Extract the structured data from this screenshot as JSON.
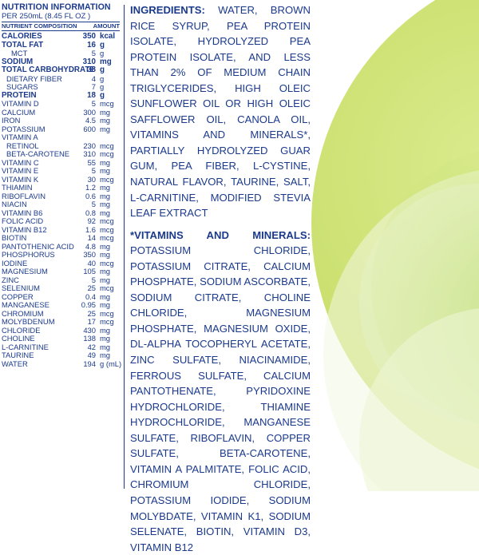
{
  "nutrition": {
    "title": "NUTRITION INFORMATION",
    "serving": "PER 250mL  (8.45 FL OZ )",
    "header_nutrient": "NUTRIENT COMPOSITION",
    "header_amount": "AMOUNT",
    "rows": [
      {
        "name": "CALORIES",
        "amount": "350",
        "unit": "kcal",
        "bold": true,
        "indent": 0
      },
      {
        "name": "TOTAL FAT",
        "amount": "16",
        "unit": "g",
        "bold": true,
        "indent": 0
      },
      {
        "name": "MCT",
        "amount": "5",
        "unit": "g",
        "bold": false,
        "indent": 2
      },
      {
        "name": "SODIUM",
        "amount": "310",
        "unit": "mg",
        "bold": true,
        "indent": 0
      },
      {
        "name": "TOTAL CARBOHYDRATE",
        "amount": "38",
        "unit": "g",
        "bold": true,
        "indent": 0
      },
      {
        "name": "DIETARY FIBER",
        "amount": "4",
        "unit": "g",
        "bold": false,
        "indent": 1
      },
      {
        "name": "SUGARS",
        "amount": "7",
        "unit": "g",
        "bold": false,
        "indent": 1
      },
      {
        "name": "PROTEIN",
        "amount": "18",
        "unit": "g",
        "bold": true,
        "indent": 0
      },
      {
        "name": "VITAMIN D",
        "amount": "5",
        "unit": "mcg",
        "bold": false,
        "indent": 0
      },
      {
        "name": "CALCIUM",
        "amount": "300",
        "unit": "mg",
        "bold": false,
        "indent": 0
      },
      {
        "name": "IRON",
        "amount": "4.5",
        "unit": "mg",
        "bold": false,
        "indent": 0
      },
      {
        "name": "POTASSIUM",
        "amount": "600",
        "unit": "mg",
        "bold": false,
        "indent": 0
      },
      {
        "name": "VITAMIN A",
        "amount": "",
        "unit": "",
        "bold": false,
        "indent": 0
      },
      {
        "name": "RETINOL",
        "amount": "230",
        "unit": "mcg",
        "bold": false,
        "indent": 1
      },
      {
        "name": "BETA-CAROTENE",
        "amount": "310",
        "unit": "mcg",
        "bold": false,
        "indent": 1
      },
      {
        "name": "VITAMIN C",
        "amount": "55",
        "unit": "mg",
        "bold": false,
        "indent": 0
      },
      {
        "name": "VITAMIN E",
        "amount": "5",
        "unit": "mg",
        "bold": false,
        "indent": 0
      },
      {
        "name": "VITAMIN K",
        "amount": "30",
        "unit": "mcg",
        "bold": false,
        "indent": 0
      },
      {
        "name": "THIAMIN",
        "amount": "1.2",
        "unit": "mg",
        "bold": false,
        "indent": 0
      },
      {
        "name": "RIBOFLAVIN",
        "amount": "0.6",
        "unit": "mg",
        "bold": false,
        "indent": 0
      },
      {
        "name": "NIACIN",
        "amount": "5",
        "unit": "mg",
        "bold": false,
        "indent": 0
      },
      {
        "name": "VITAMIN B6",
        "amount": "0.8",
        "unit": "mg",
        "bold": false,
        "indent": 0
      },
      {
        "name": "FOLIC ACID",
        "amount": "92",
        "unit": "mcg",
        "bold": false,
        "indent": 0
      },
      {
        "name": "VITAMIN B12",
        "amount": "1.6",
        "unit": "mcg",
        "bold": false,
        "indent": 0
      },
      {
        "name": "BIOTIN",
        "amount": "14",
        "unit": "mcg",
        "bold": false,
        "indent": 0
      },
      {
        "name": "PANTOTHENIC ACID",
        "amount": "4.8",
        "unit": "mg",
        "bold": false,
        "indent": 0
      },
      {
        "name": "PHOSPHORUS",
        "amount": "350",
        "unit": "mg",
        "bold": false,
        "indent": 0
      },
      {
        "name": "IODINE",
        "amount": "40",
        "unit": "mcg",
        "bold": false,
        "indent": 0
      },
      {
        "name": "MAGNESIUM",
        "amount": "105",
        "unit": "mg",
        "bold": false,
        "indent": 0
      },
      {
        "name": "ZINC",
        "amount": "5",
        "unit": "mg",
        "bold": false,
        "indent": 0
      },
      {
        "name": "SELENIUM",
        "amount": "25",
        "unit": "mcg",
        "bold": false,
        "indent": 0
      },
      {
        "name": "COPPER",
        "amount": "0.4",
        "unit": "mg",
        "bold": false,
        "indent": 0
      },
      {
        "name": "MANGANESE",
        "amount": "0.95",
        "unit": "mg",
        "bold": false,
        "indent": 0
      },
      {
        "name": "CHROMIUM",
        "amount": "25",
        "unit": "mcg",
        "bold": false,
        "indent": 0
      },
      {
        "name": "MOLYBDENUM",
        "amount": "17",
        "unit": "mcg",
        "bold": false,
        "indent": 0
      },
      {
        "name": "CHLORIDE",
        "amount": "430",
        "unit": "mg",
        "bold": false,
        "indent": 0
      },
      {
        "name": "CHOLINE",
        "amount": "138",
        "unit": "mg",
        "bold": false,
        "indent": 0
      },
      {
        "name": "L-CARNITINE",
        "amount": "42",
        "unit": "mg",
        "bold": false,
        "indent": 0
      },
      {
        "name": "TAURINE",
        "amount": "49",
        "unit": "mg",
        "bold": false,
        "indent": 0
      },
      {
        "name": "WATER",
        "amount": "194",
        "unit": "g (mL)",
        "bold": false,
        "indent": 0
      }
    ]
  },
  "ingredients": {
    "label": "INGREDIENTS:",
    "text": " WATER, BROWN RICE SYRUP, PEA PROTEIN ISOLATE, HYDROLYZED PEA PROTEIN ISOLATE, AND LESS THAN 2% OF MEDIUM CHAIN TRIGLYCERIDES, HIGH OLEIC SUNFLOWER OIL OR HIGH OLEIC SAFFLOWER OIL, CANOLA OIL, VITAMINS AND MINERALS*, PARTIALLY HYDROLYZED GUAR GUM, PEA FIBER, L-CYSTINE, NATURAL FLAVOR, TAURINE, SALT, L-CARNITINE, MODIFIED STEVIA LEAF EXTRACT",
    "vitamins_label": "*VITAMINS AND MINERALS:",
    "vitamins_text": " POTASSIUM CHLORIDE, POTASSIUM CITRATE, CALCIUM PHOSPHATE, SODIUM ASCORBATE, SODIUM CITRATE, CHOLINE CHLORIDE, MAGNESIUM PHOSPHATE, MAGNESIUM OXIDE, DL-ALPHA TOCOPHERYL ACETATE, ZINC SULFATE, NIACINAMIDE, FERROUS SULFATE, CALCIUM PANTOTHENATE, PYRIDOXINE HYDROCHLORIDE, THIAMINE HYDROCHLORIDE, MANGANESE SULFATE, RIBOFLAVIN, COPPER SULFATE, BETA-CAROTENE, VITAMIN A PALMITATE, FOLIC ACID, CHROMIUM CHLORIDE, POTASSIUM IODIDE, SODIUM MOLYBDATE, VITAMIN K1, SODIUM SELENATE, BIOTIN, VITAMIN D3, VITAMIN B12"
  },
  "colors": {
    "text": "#1b3a8c",
    "lime": "#c6dc5a",
    "pale_green": "#eef5d2",
    "deep_green": "#8cc43a"
  }
}
